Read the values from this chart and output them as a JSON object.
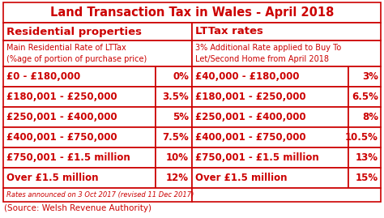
{
  "title": "Land Transaction Tax in Wales - April 2018",
  "source": "(Source: Welsh Revenue Authority)",
  "footnote": "Rates announced on 3 Oct 2017 (revised 11 Dec 2017)",
  "col_headers": [
    "Residential properties",
    "LTTax rates"
  ],
  "sub_header_left": "Main Residential Rate of LTTax\n(%age of portion of purchase price)",
  "sub_header_right": "3% Additional Rate applied to Buy To\nLet/Second Home from April 2018",
  "rows": [
    [
      "£0 - £180,000",
      "0%",
      "£40,000 - £180,000",
      "3%"
    ],
    [
      "£180,001 - £250,000",
      "3.5%",
      "£180,001 - £250,000",
      "6.5%"
    ],
    [
      "£250,001 - £400,000",
      "5%",
      "£250,001 - £400,000",
      "8%"
    ],
    [
      "£400,001 - £750,000",
      "7.5%",
      "£400,001 - £750,000",
      "10.5%"
    ],
    [
      "£750,001 - £1.5 million",
      "10%",
      "£750,001 - £1.5 million",
      "13%"
    ],
    [
      "Over £1.5 million",
      "12%",
      "Over £1.5 million",
      "15%"
    ]
  ],
  "red": "#CC0000",
  "white": "#FFFFFF",
  "title_fontsize": 10.5,
  "header_fontsize": 9.5,
  "subheader_fontsize": 7.0,
  "cell_fontsize": 8.5,
  "footnote_fontsize": 6.0,
  "source_fontsize": 7.5,
  "lw": 1.2
}
